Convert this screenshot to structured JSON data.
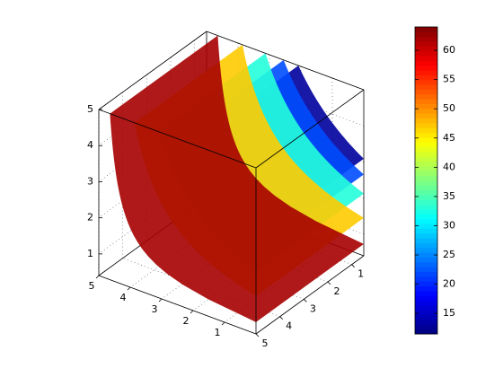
{
  "chart_data": {
    "type": "isosurface",
    "xlim": [
      0,
      5
    ],
    "xticks": [
      1,
      2,
      3,
      4,
      5
    ],
    "ylim": [
      0.5,
      5
    ],
    "yticks": [
      1,
      2,
      3,
      4,
      5
    ],
    "zlim": [
      0.4,
      5
    ],
    "zticks": [
      1,
      2,
      3,
      4,
      5
    ],
    "clim": [
      11.5,
      64
    ],
    "cticks": [
      15,
      20,
      25,
      30,
      35,
      40,
      45,
      50,
      55,
      60
    ],
    "colormap": "jet",
    "isovalues": [
      13,
      22,
      33,
      47,
      62
    ],
    "grid": true,
    "box": true
  }
}
